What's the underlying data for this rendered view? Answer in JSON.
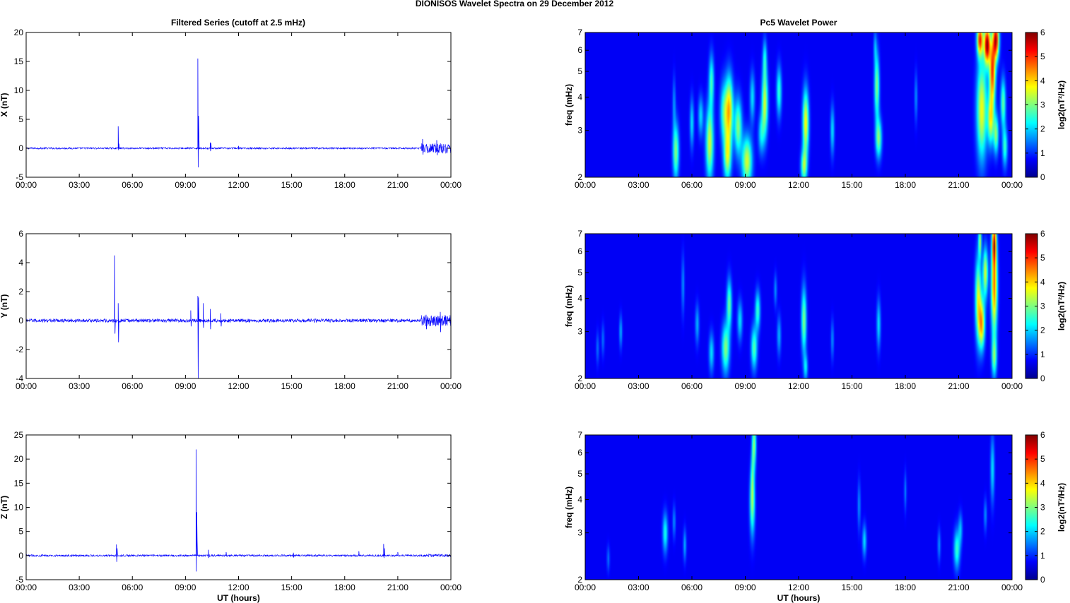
{
  "figure": {
    "suptitle": "DIONISOS Wavelet Spectra on 29 December  2012",
    "left_title": "Filtered Series (cutoff at 2.5 mHz)",
    "right_title": "Pc5 Wavelet Power",
    "xlabel": "UT (hours)",
    "time_ticks": [
      "00:00",
      "03:00",
      "06:00",
      "09:00",
      "12:00",
      "15:00",
      "18:00",
      "21:00",
      "00:00"
    ],
    "series_color": "#0000ff",
    "colormap": "jet",
    "colorbar_ticks": [
      "0",
      "1",
      "2",
      "3",
      "4",
      "5",
      "6"
    ]
  },
  "chart_data": [
    {
      "type": "line",
      "ylabel": "X (nT)",
      "ylim": [
        -5,
        20
      ],
      "xlim": [
        0,
        24
      ],
      "yticks": [
        "-5",
        "0",
        "5",
        "10",
        "15",
        "20"
      ],
      "baseline_noise_nT": 0.15,
      "late_activity": {
        "start_h": 22.3,
        "end_h": 24,
        "amplitude_nT": 0.9
      },
      "spikes": [
        {
          "t": 5.2,
          "values": [
            3.8,
            -0.3,
            0.8
          ]
        },
        {
          "t": 9.7,
          "values": [
            15.5,
            -3.3,
            5.6,
            2.4
          ]
        },
        {
          "t": 10.4,
          "values": [
            1.0,
            -0.5,
            0.9
          ]
        },
        {
          "t": 12.0,
          "values": [
            0.4
          ]
        },
        {
          "t": 22.4,
          "values": [
            1.6,
            -1.1
          ]
        },
        {
          "t": 23.2,
          "values": [
            1.4,
            -1.2
          ]
        }
      ]
    },
    {
      "type": "line",
      "ylabel": "Y (nT)",
      "ylim": [
        -4,
        6
      ],
      "xlim": [
        0,
        24
      ],
      "yticks": [
        "-4",
        "-2",
        "0",
        "2",
        "4",
        "6"
      ],
      "baseline_noise_nT": 0.12,
      "late_activity": {
        "start_h": 22.3,
        "end_h": 24,
        "amplitude_nT": 0.4
      },
      "spikes": [
        {
          "t": 5.0,
          "values": [
            4.5,
            -0.9
          ]
        },
        {
          "t": 5.2,
          "values": [
            1.2,
            -1.5
          ]
        },
        {
          "t": 9.3,
          "values": [
            0.7,
            -0.4
          ]
        },
        {
          "t": 9.7,
          "values": [
            1.7,
            -4.0,
            1.6
          ]
        },
        {
          "t": 10.0,
          "values": [
            1.2,
            -0.5
          ]
        },
        {
          "t": 10.4,
          "values": [
            0.8,
            -0.6
          ]
        },
        {
          "t": 11.0,
          "values": [
            0.5,
            -0.4
          ]
        },
        {
          "t": 22.6,
          "values": [
            0.4,
            -0.6
          ]
        },
        {
          "t": 23.4,
          "values": [
            0.6,
            -0.8
          ]
        }
      ]
    },
    {
      "type": "line",
      "ylabel": "Z (nT)",
      "ylim": [
        -5,
        25
      ],
      "xlim": [
        0,
        24
      ],
      "yticks": [
        "-5",
        "0",
        "5",
        "10",
        "15",
        "20",
        "25"
      ],
      "baseline_noise_nT": 0.2,
      "late_activity": {
        "start_h": 22.5,
        "end_h": 24,
        "amplitude_nT": 0.3
      },
      "spikes": [
        {
          "t": 5.1,
          "values": [
            2.3,
            -1.3,
            1.5
          ]
        },
        {
          "t": 9.6,
          "values": [
            22.0,
            -3.3,
            9.0,
            3.2
          ]
        },
        {
          "t": 10.3,
          "values": [
            1.2,
            -0.5
          ]
        },
        {
          "t": 11.3,
          "values": [
            0.7
          ]
        },
        {
          "t": 15.1,
          "values": [
            0.6,
            -0.4
          ]
        },
        {
          "t": 18.8,
          "values": [
            0.9
          ]
        },
        {
          "t": 20.2,
          "values": [
            2.4,
            -0.5,
            1.5
          ]
        },
        {
          "t": 21.0,
          "values": [
            0.7
          ]
        }
      ]
    },
    {
      "type": "heatmap",
      "ylabel": "freq (mHz)",
      "yscale": "log",
      "ylim": [
        2,
        7
      ],
      "xlim": [
        0,
        24
      ],
      "yticks": [
        "2",
        "3",
        "4",
        "5",
        "6",
        "7"
      ],
      "colorbar_label": "log2(nT²/Hz)",
      "zlim": [
        0,
        6
      ],
      "blobs": [
        {
          "t": 5.1,
          "f": 2.5,
          "dt": 0.12,
          "df": 0.17,
          "p": 2.5
        },
        {
          "t": 5.0,
          "f": 3.8,
          "dt": 0.06,
          "df": 0.16,
          "p": 1.0
        },
        {
          "t": 6.0,
          "f": 3.2,
          "dt": 0.08,
          "df": 0.15,
          "p": 1.5
        },
        {
          "t": 6.5,
          "f": 3.4,
          "dt": 0.1,
          "df": 0.12,
          "p": 1.5
        },
        {
          "t": 7.0,
          "f": 2.7,
          "dt": 0.15,
          "df": 0.22,
          "p": 3.0
        },
        {
          "t": 7.1,
          "f": 4.6,
          "dt": 0.1,
          "df": 0.16,
          "p": 2.0
        },
        {
          "t": 7.8,
          "f": 3.5,
          "dt": 0.15,
          "df": 0.18,
          "p": 2.0
        },
        {
          "t": 8.1,
          "f": 3.6,
          "dt": 0.15,
          "df": 0.2,
          "p": 3.5
        },
        {
          "t": 8.0,
          "f": 2.4,
          "dt": 0.15,
          "df": 0.15,
          "p": 2.8
        },
        {
          "t": 8.6,
          "f": 3.1,
          "dt": 0.15,
          "df": 0.17,
          "p": 2.5
        },
        {
          "t": 9.1,
          "f": 2.3,
          "dt": 0.2,
          "df": 0.15,
          "p": 3.0
        },
        {
          "t": 9.4,
          "f": 4.0,
          "dt": 0.1,
          "df": 0.15,
          "p": 1.5
        },
        {
          "t": 9.9,
          "f": 2.9,
          "dt": 0.12,
          "df": 0.12,
          "p": 1.5
        },
        {
          "t": 10.1,
          "f": 3.8,
          "dt": 0.12,
          "df": 0.2,
          "p": 3.0
        },
        {
          "t": 10.1,
          "f": 5.6,
          "dt": 0.08,
          "df": 0.12,
          "p": 1.5
        },
        {
          "t": 10.9,
          "f": 4.2,
          "dt": 0.1,
          "df": 0.15,
          "p": 2.0
        },
        {
          "t": 12.4,
          "f": 3.2,
          "dt": 0.12,
          "df": 0.2,
          "p": 3.3
        },
        {
          "t": 12.3,
          "f": 2.2,
          "dt": 0.12,
          "df": 0.1,
          "p": 2.5
        },
        {
          "t": 13.9,
          "f": 3.0,
          "dt": 0.08,
          "df": 0.15,
          "p": 1.5
        },
        {
          "t": 16.4,
          "f": 4.4,
          "dt": 0.1,
          "df": 0.2,
          "p": 2.5
        },
        {
          "t": 16.5,
          "f": 2.8,
          "dt": 0.12,
          "df": 0.12,
          "p": 2.5
        },
        {
          "t": 16.3,
          "f": 6.2,
          "dt": 0.06,
          "df": 0.1,
          "p": 1.0
        },
        {
          "t": 18.6,
          "f": 4.0,
          "dt": 0.06,
          "df": 0.15,
          "p": 1.0
        },
        {
          "t": 22.3,
          "f": 3.6,
          "dt": 0.2,
          "df": 0.3,
          "p": 3.2
        },
        {
          "t": 22.2,
          "f": 6.6,
          "dt": 0.12,
          "df": 0.1,
          "p": 4.5
        },
        {
          "t": 22.6,
          "f": 6.3,
          "dt": 0.12,
          "df": 0.12,
          "p": 5.5
        },
        {
          "t": 22.9,
          "f": 5.0,
          "dt": 0.12,
          "df": 0.2,
          "p": 4.5
        },
        {
          "t": 23.1,
          "f": 6.6,
          "dt": 0.12,
          "df": 0.12,
          "p": 5.0
        },
        {
          "t": 22.8,
          "f": 3.3,
          "dt": 0.12,
          "df": 0.15,
          "p": 3.0
        },
        {
          "t": 23.1,
          "f": 2.9,
          "dt": 0.1,
          "df": 0.12,
          "p": 2.5
        },
        {
          "t": 23.5,
          "f": 3.8,
          "dt": 0.1,
          "df": 0.15,
          "p": 2.3
        },
        {
          "t": 23.6,
          "f": 2.6,
          "dt": 0.1,
          "df": 0.12,
          "p": 2.0
        }
      ]
    },
    {
      "type": "heatmap",
      "ylabel": "freq (mHz)",
      "yscale": "log",
      "ylim": [
        2,
        7
      ],
      "xlim": [
        0,
        24
      ],
      "yticks": [
        "2",
        "3",
        "4",
        "5",
        "6",
        "7"
      ],
      "colorbar_label": "log2(nT²/Hz)",
      "zlim": [
        0,
        6
      ],
      "blobs": [
        {
          "t": 0.7,
          "f": 2.6,
          "dt": 0.06,
          "df": 0.1,
          "p": 0.8
        },
        {
          "t": 1.0,
          "f": 2.8,
          "dt": 0.06,
          "df": 0.1,
          "p": 0.8
        },
        {
          "t": 2.0,
          "f": 3.0,
          "dt": 0.06,
          "df": 0.1,
          "p": 1.2
        },
        {
          "t": 5.5,
          "f": 4.5,
          "dt": 0.06,
          "df": 0.18,
          "p": 1.0
        },
        {
          "t": 6.3,
          "f": 3.2,
          "dt": 0.08,
          "df": 0.12,
          "p": 1.2
        },
        {
          "t": 7.1,
          "f": 2.5,
          "dt": 0.1,
          "df": 0.12,
          "p": 1.5
        },
        {
          "t": 7.9,
          "f": 2.6,
          "dt": 0.15,
          "df": 0.15,
          "p": 2.5
        },
        {
          "t": 8.1,
          "f": 3.8,
          "dt": 0.1,
          "df": 0.15,
          "p": 2.3
        },
        {
          "t": 8.7,
          "f": 3.3,
          "dt": 0.1,
          "df": 0.12,
          "p": 1.5
        },
        {
          "t": 9.5,
          "f": 2.6,
          "dt": 0.12,
          "df": 0.13,
          "p": 2.2
        },
        {
          "t": 9.7,
          "f": 3.6,
          "dt": 0.1,
          "df": 0.12,
          "p": 2.0
        },
        {
          "t": 10.9,
          "f": 2.9,
          "dt": 0.08,
          "df": 0.12,
          "p": 1.2
        },
        {
          "t": 10.7,
          "f": 4.3,
          "dt": 0.06,
          "df": 0.1,
          "p": 1.0
        },
        {
          "t": 12.3,
          "f": 3.3,
          "dt": 0.1,
          "df": 0.2,
          "p": 2.5
        },
        {
          "t": 12.4,
          "f": 2.2,
          "dt": 0.08,
          "df": 0.08,
          "p": 1.5
        },
        {
          "t": 13.9,
          "f": 2.8,
          "dt": 0.06,
          "df": 0.12,
          "p": 1.0
        },
        {
          "t": 16.5,
          "f": 3.2,
          "dt": 0.08,
          "df": 0.15,
          "p": 1.5
        },
        {
          "t": 22.1,
          "f": 4.0,
          "dt": 0.12,
          "df": 0.25,
          "p": 3.0
        },
        {
          "t": 22.3,
          "f": 3.2,
          "dt": 0.12,
          "df": 0.15,
          "p": 3.5
        },
        {
          "t": 22.2,
          "f": 6.6,
          "dt": 0.06,
          "df": 0.1,
          "p": 2.5
        },
        {
          "t": 22.5,
          "f": 5.0,
          "dt": 0.1,
          "df": 0.15,
          "p": 3.0
        },
        {
          "t": 23.0,
          "f": 4.5,
          "dt": 0.12,
          "df": 0.3,
          "p": 4.2
        },
        {
          "t": 23.0,
          "f": 6.5,
          "dt": 0.08,
          "df": 0.12,
          "p": 3.5
        },
        {
          "t": 23.0,
          "f": 2.4,
          "dt": 0.1,
          "df": 0.12,
          "p": 2.2
        }
      ]
    },
    {
      "type": "heatmap",
      "ylabel": "freq (mHz)",
      "yscale": "log",
      "ylim": [
        2,
        7
      ],
      "xlim": [
        0,
        24
      ],
      "yticks": [
        "2",
        "3",
        "4",
        "5",
        "6",
        "7"
      ],
      "colorbar_label": "log2(nT²/Hz)",
      "zlim": [
        0,
        6
      ],
      "blobs": [
        {
          "t": 1.3,
          "f": 2.4,
          "dt": 0.06,
          "df": 0.08,
          "p": 0.8
        },
        {
          "t": 4.5,
          "f": 3.0,
          "dt": 0.1,
          "df": 0.12,
          "p": 1.8
        },
        {
          "t": 5.0,
          "f": 3.3,
          "dt": 0.06,
          "df": 0.1,
          "p": 1.0
        },
        {
          "t": 5.6,
          "f": 2.7,
          "dt": 0.06,
          "df": 0.1,
          "p": 1.2
        },
        {
          "t": 9.4,
          "f": 3.9,
          "dt": 0.1,
          "df": 0.2,
          "p": 2.5
        },
        {
          "t": 9.5,
          "f": 6.5,
          "dt": 0.08,
          "df": 0.15,
          "p": 2.5
        },
        {
          "t": 9.4,
          "f": 5.0,
          "dt": 0.06,
          "df": 0.15,
          "p": 1.0
        },
        {
          "t": 15.4,
          "f": 3.8,
          "dt": 0.06,
          "df": 0.15,
          "p": 1.0
        },
        {
          "t": 15.7,
          "f": 2.8,
          "dt": 0.08,
          "df": 0.1,
          "p": 1.5
        },
        {
          "t": 18.0,
          "f": 4.3,
          "dt": 0.05,
          "df": 0.12,
          "p": 0.9
        },
        {
          "t": 19.9,
          "f": 2.7,
          "dt": 0.06,
          "df": 0.1,
          "p": 1.0
        },
        {
          "t": 20.9,
          "f": 2.6,
          "dt": 0.12,
          "df": 0.12,
          "p": 2.0
        },
        {
          "t": 21.1,
          "f": 3.1,
          "dt": 0.08,
          "df": 0.1,
          "p": 1.2
        },
        {
          "t": 22.5,
          "f": 3.5,
          "dt": 0.06,
          "df": 0.1,
          "p": 1.0
        },
        {
          "t": 22.9,
          "f": 5.2,
          "dt": 0.08,
          "df": 0.2,
          "p": 1.5
        }
      ]
    }
  ]
}
